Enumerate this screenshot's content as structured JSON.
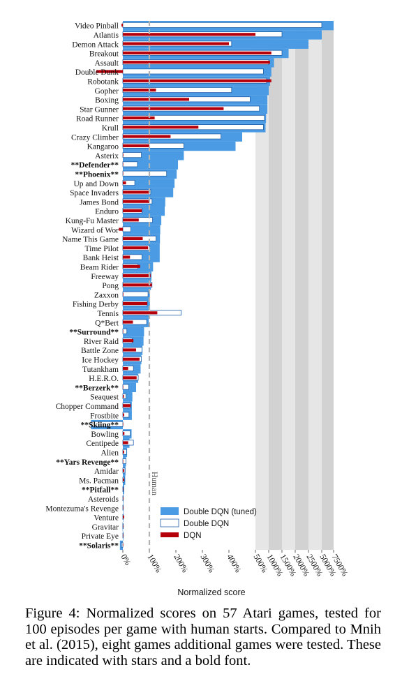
{
  "chart_data": {
    "type": "bar",
    "orientation": "horizontal",
    "xlabel": "Normalized score",
    "x_ticks": [
      "0%",
      "100%",
      "200%",
      "300%",
      "400%",
      "500%",
      "1000%",
      "1500%",
      "2000%",
      "2500%",
      "5000%",
      "7500%"
    ],
    "x_scale": "piecewise: linear 0–500%, then each shaded band 500→1000→1500→2000→2500→5000→7500%",
    "human_reference": {
      "value": 100,
      "label": "Human"
    },
    "legend_position": "bottom-right",
    "legend": [
      "Double DQN (tuned)",
      "Double DQN",
      "DQN"
    ],
    "colors": {
      "tuned": "#4a9be3",
      "ddqn_fill": "#ffffff",
      "ddqn_edge": "#1f5fa8",
      "dqn": "#b5000c",
      "shade_a": "#e6e6e6",
      "shade_b": "#d2d2d2",
      "human_line": "#b3b3b3"
    },
    "games": [
      "Video Pinball",
      "Atlantis",
      "Demon Attack",
      "Breakout",
      "Assault",
      "Double Dunk",
      "Robotank",
      "Gopher",
      "Boxing",
      "Star Gunner",
      "Road Runner",
      "Krull",
      "Crazy Climber",
      "Kangaroo",
      "Asterix",
      "**Defender**",
      "**Phoenix**",
      "Up and Down",
      "Space Invaders",
      "James Bond",
      "Enduro",
      "Kung-Fu Master",
      "Wizard of Wor",
      "Name This Game",
      "Time Pilot",
      "Bank Heist",
      "Beam Rider",
      "Freeway",
      "Pong",
      "Zaxxon",
      "Fishing Derby",
      "Tennis",
      "Q*Bert",
      "**Surround**",
      "River Raid",
      "Battle Zone",
      "Ice Hockey",
      "Tutankham",
      "H.E.R.O.",
      "**Berzerk**",
      "Seaquest",
      "Chopper Command",
      "Frostbite",
      "**Skiing**",
      "Bowling",
      "Centipede",
      "Alien",
      "**Yars Revenge**",
      "Amidar",
      "Ms. Pacman",
      "**Pitfall**",
      "Asteroids",
      "Montezuma's Revenge",
      "Venture",
      "Gravitar",
      "Private Eye",
      "**Solaris**"
    ],
    "new_games": [
      "Defender",
      "Phoenix",
      "Surround",
      "Berzerk",
      "Skiing",
      "Yars Revenge",
      "Pitfall",
      "Solaris"
    ],
    "series": [
      {
        "name": "Double DQN (tuned)",
        "values": [
          7500,
          5000,
          2500,
          1750,
          1200,
          1100,
          1050,
          1000,
          950,
          950,
          900,
          880,
          450,
          425,
          230,
          208,
          203,
          195,
          190,
          160,
          158,
          145,
          141,
          140,
          139,
          139,
          114,
          108,
          106,
          102,
          102,
          100,
          98,
          80,
          78,
          74,
          70,
          67,
          58,
          50,
          36,
          34,
          34,
          -120,
          33,
          25,
          16,
          12,
          10,
          9,
          5,
          2,
          1,
          0.5,
          -1,
          0,
          -11
        ]
      },
      {
        "name": "Double DQN",
        "values": [
          5000,
          1500,
          410,
          1500,
          1000,
          800,
          920,
          410,
          480,
          650,
          840,
          800,
          370,
          230,
          70,
          55,
          165,
          45,
          105,
          110,
          72,
          112,
          30,
          125,
          100,
          72,
          57,
          105,
          110,
          95,
          92,
          220,
          90,
          15,
          35,
          72,
          70,
          40,
          58,
          22,
          12,
          28,
          23,
          -120,
          28,
          40,
          14,
          12,
          8,
          6,
          2,
          1,
          0.5,
          0.5,
          0,
          0,
          -5
        ]
      },
      {
        "name": "DQN",
        "values": [
          -5,
          500,
          400,
          1100,
          1050,
          -100,
          1100,
          125,
          250,
          380,
          120,
          285,
          180,
          100,
          2,
          0,
          0,
          12,
          100,
          100,
          72,
          60,
          -15,
          75,
          95,
          27,
          65,
          105,
          110,
          2,
          92,
          130,
          38,
          0,
          40,
          50,
          63,
          20,
          52,
          0,
          4,
          30,
          5,
          0,
          6,
          20,
          5,
          0,
          5,
          5,
          0,
          0,
          0,
          5,
          0,
          0,
          0
        ]
      }
    ]
  },
  "caption": "Figure 4:  Normalized scores on 57 Atari games, tested for 100 episodes per game with human starts. Compared to Mnih et al. (2015), eight games additional games were tested. These are indicated with stars and a bold font."
}
